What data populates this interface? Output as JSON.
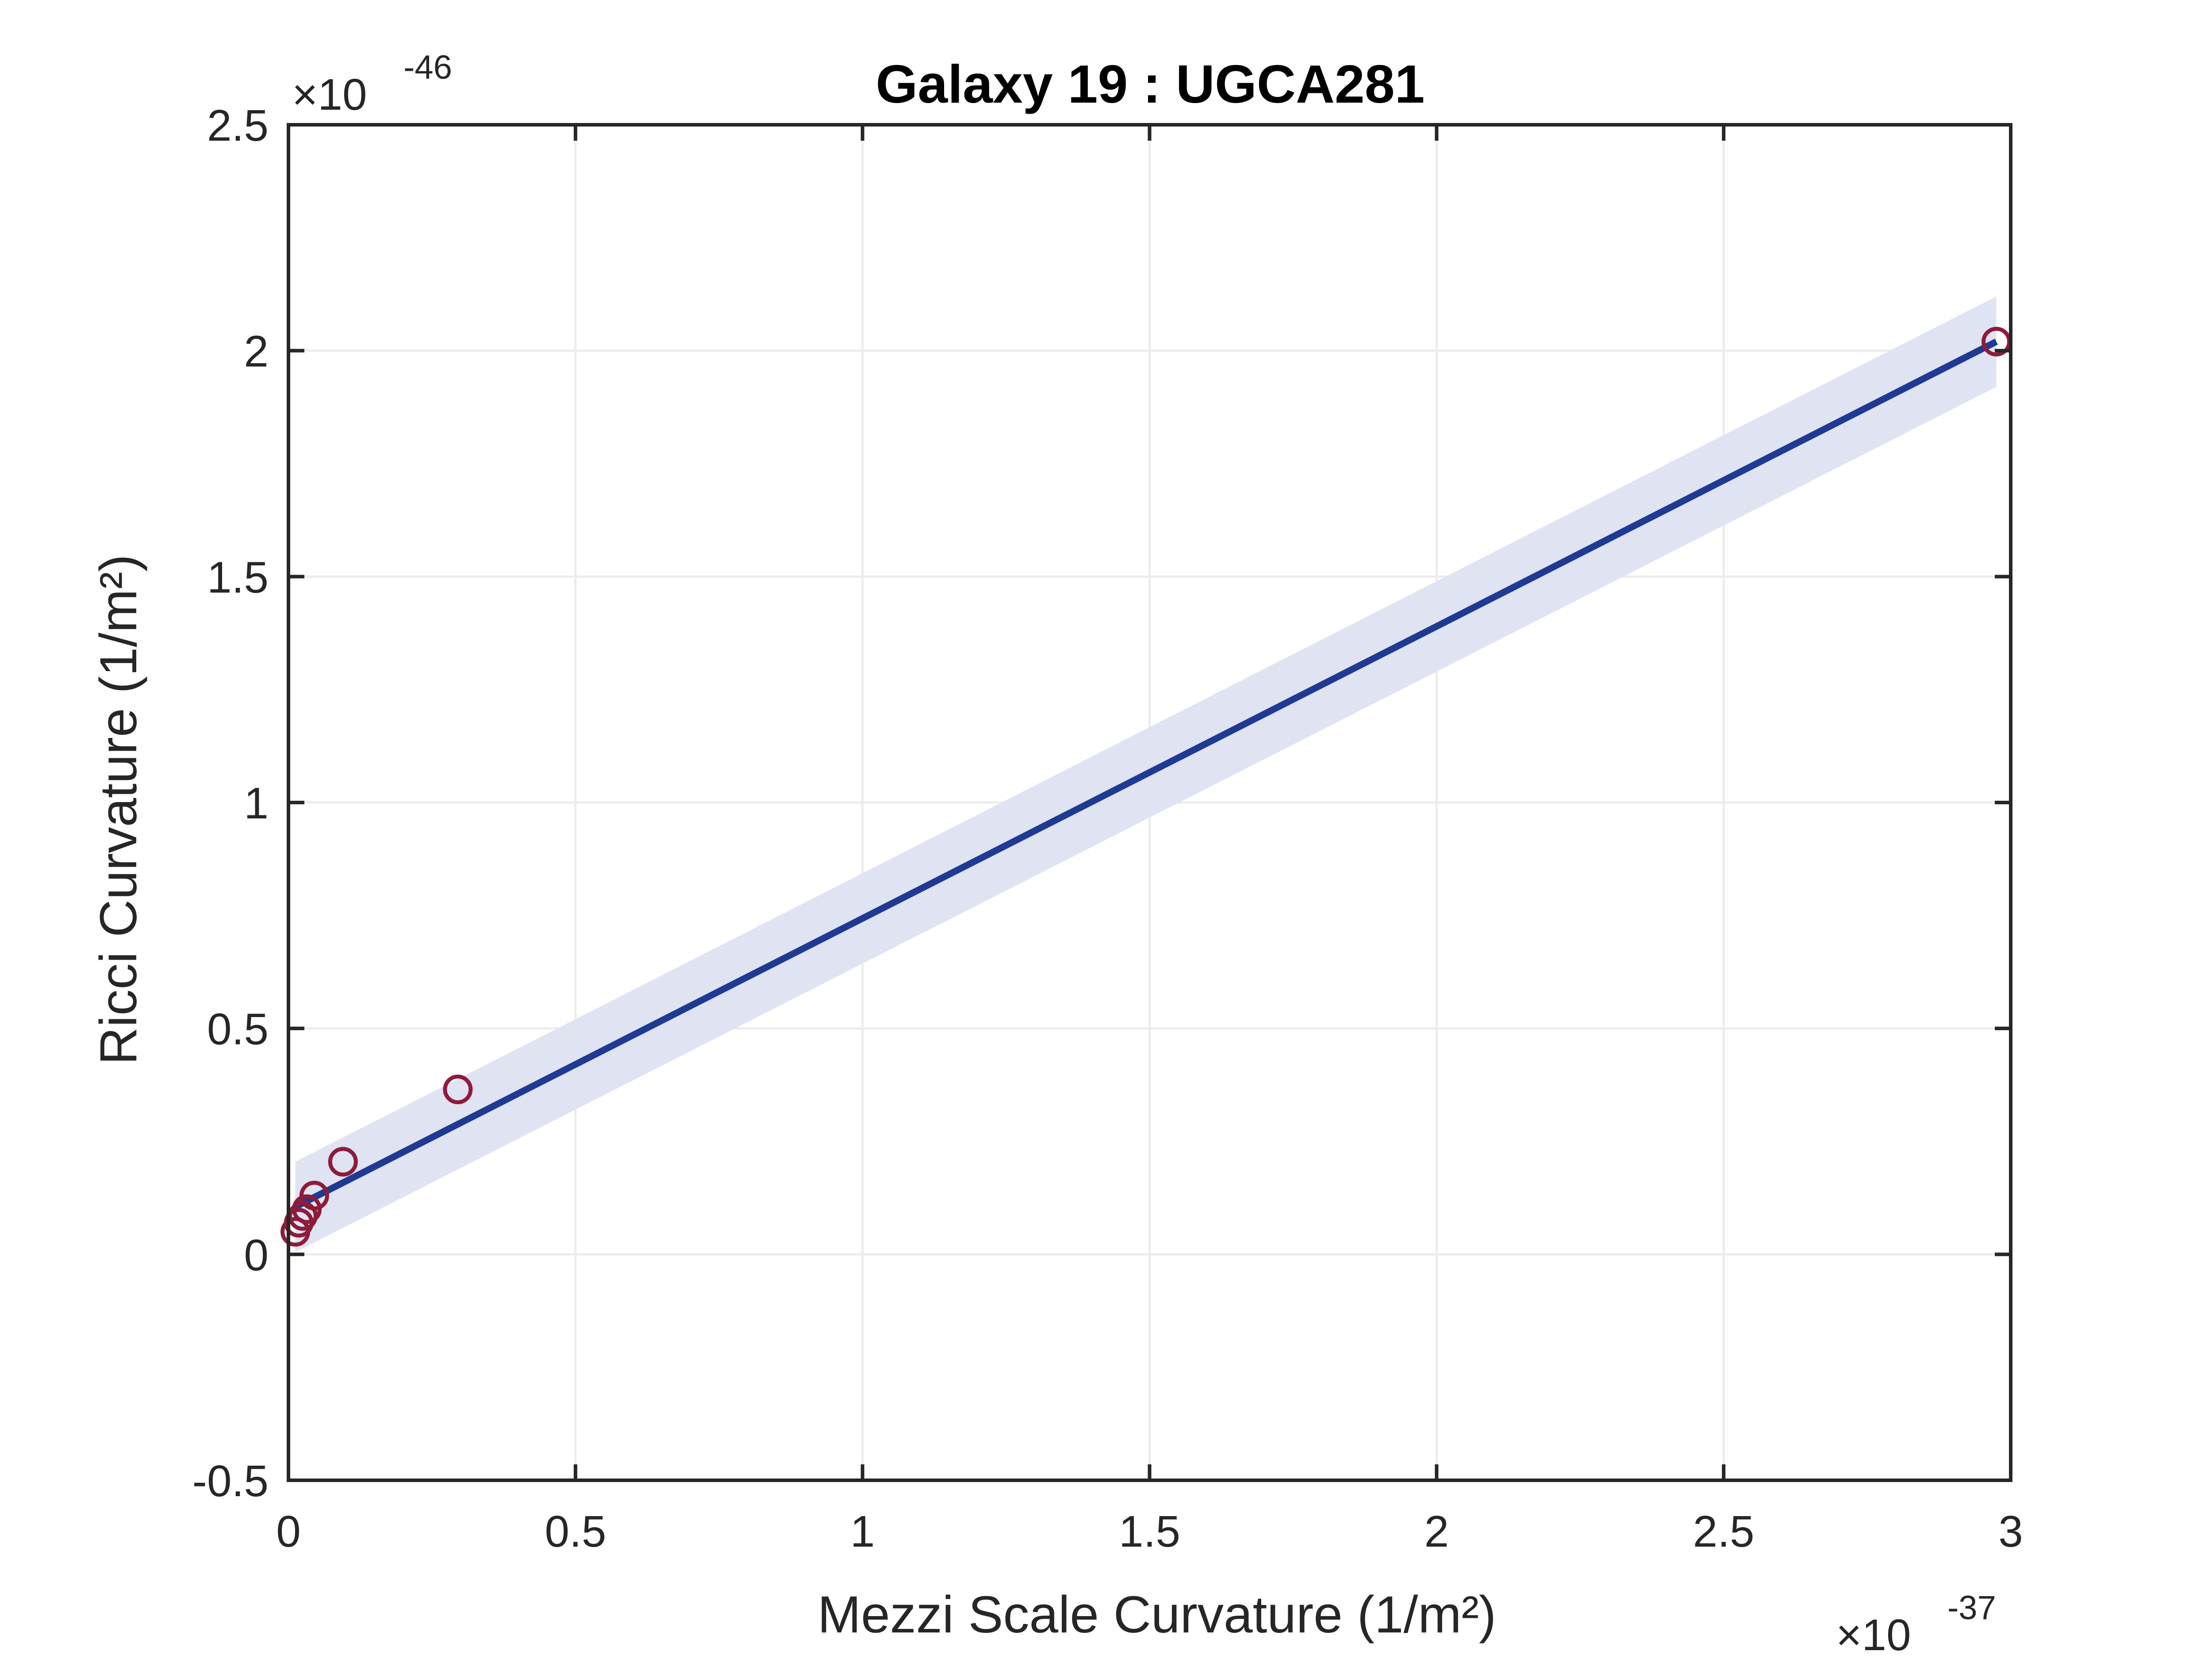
{
  "chart_data": {
    "type": "scatter",
    "title": "Galaxy 19 : UGCA281",
    "xlabel": "Mezzi Scale Curvature (1/m²)",
    "ylabel": "Ricci Curvature (1/m²)",
    "x_multiplier": {
      "base": "×10",
      "power": "-37"
    },
    "y_multiplier": {
      "base": "×10",
      "power": "-46"
    },
    "xlim": [
      0,
      3
    ],
    "ylim": [
      -0.5,
      2.5
    ],
    "xticks": [
      0,
      0.5,
      1,
      1.5,
      2,
      2.5,
      3
    ],
    "xtick_labels": [
      "0",
      "0.5",
      "1",
      "1.5",
      "2",
      "2.5",
      "3"
    ],
    "yticks": [
      -0.5,
      0,
      0.5,
      1,
      1.5,
      2,
      2.5
    ],
    "ytick_labels": [
      "-0.5",
      "0",
      "0.5",
      "1",
      "1.5",
      "2",
      "2.5"
    ],
    "grid": true,
    "points": {
      "x": [
        0.012,
        0.018,
        0.025,
        0.032,
        0.045,
        0.095,
        0.295,
        2.975
      ],
      "y": [
        0.05,
        0.07,
        0.085,
        0.1,
        0.13,
        0.205,
        0.365,
        2.02
      ]
    },
    "fit_line": {
      "x": [
        0.012,
        2.975
      ],
      "y": [
        0.105,
        2.02
      ]
    },
    "confidence_band": {
      "x": [
        0.012,
        2.975
      ],
      "upper": [
        0.205,
        2.12
      ],
      "lower": [
        0.005,
        1.92
      ]
    },
    "colors": {
      "marker": "#8e1b3a",
      "fit_line": "#1f3a93",
      "band": "#dfe3f2",
      "axis": "#262626",
      "grid": "#ececec"
    }
  }
}
